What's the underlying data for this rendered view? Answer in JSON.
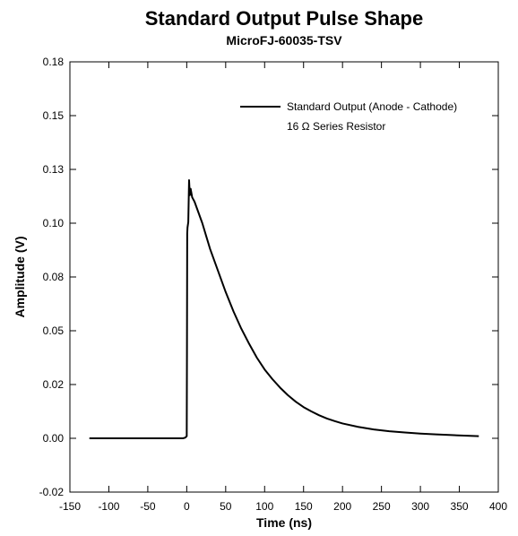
{
  "chart_data": {
    "type": "line",
    "title": "Standard Output Pulse Shape",
    "subtitle": "MicroFJ-60035-TSV",
    "xlabel": "Time (ns)",
    "ylabel": "Amplitude (V)",
    "xlim": [
      -150,
      400
    ],
    "ylim": [
      -0.025,
      0.175
    ],
    "x_ticks": [
      -150,
      -100,
      -50,
      0,
      50,
      100,
      150,
      200,
      250,
      300,
      350,
      400
    ],
    "x_tick_labels": [
      "-150",
      "-100",
      "-50",
      "0",
      "50",
      "100",
      "150",
      "200",
      "250",
      "300",
      "350",
      "400"
    ],
    "y_ticks": [
      -0.025,
      0,
      0.025,
      0.05,
      0.075,
      0.1,
      0.125,
      0.15,
      0.175
    ],
    "y_tick_labels": [
      "-0.02",
      "0.00",
      "0.02",
      "0.05",
      "0.08",
      "0.10",
      "0.13",
      "0.15",
      "0.18"
    ],
    "grid": false,
    "legend_position": "top-right",
    "legend": {
      "entries": [
        "Standard Output (Anode - Cathode)"
      ],
      "note": "16 Ω Series Resistor"
    },
    "series": [
      {
        "name": "Standard Output (Anode - Cathode)",
        "color": "#000000",
        "x": [
          -125,
          -100,
          -75,
          -50,
          -25,
          -5,
          -2,
          0,
          0.3,
          0.6,
          1,
          2,
          3,
          4,
          5,
          7,
          10,
          15,
          20,
          25,
          30,
          40,
          50,
          60,
          70,
          80,
          90,
          100,
          110,
          120,
          130,
          140,
          150,
          160,
          170,
          180,
          190,
          200,
          220,
          240,
          260,
          280,
          300,
          320,
          340,
          360,
          375
        ],
        "y": [
          0,
          0,
          0,
          0,
          0,
          0,
          0.0003,
          0.001,
          0.04,
          0.095,
          0.098,
          0.1005,
          0.12,
          0.113,
          0.116,
          0.112,
          0.11,
          0.105,
          0.1,
          0.094,
          0.088,
          0.078,
          0.068,
          0.059,
          0.051,
          0.044,
          0.0375,
          0.032,
          0.0275,
          0.0235,
          0.02,
          0.017,
          0.0145,
          0.0125,
          0.0107,
          0.0092,
          0.008,
          0.0069,
          0.0053,
          0.0041,
          0.0033,
          0.0027,
          0.0022,
          0.0018,
          0.0015,
          0.0012,
          0.001
        ]
      }
    ]
  }
}
